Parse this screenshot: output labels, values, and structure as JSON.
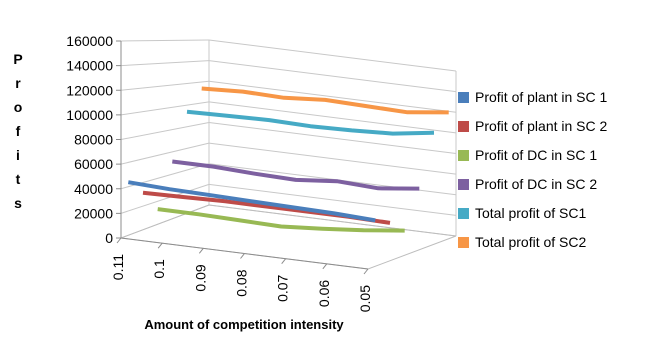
{
  "chart_data": {
    "type": "line",
    "subtype": "3d-line",
    "title": "",
    "ylabel_chars": [
      "P",
      "r",
      "o",
      "f",
      "i",
      "t",
      "s"
    ],
    "xlabel": "Amount of competition intensity",
    "categories": [
      "0.11",
      "0.1",
      "0.09",
      "0.08",
      "0.07",
      "0.06",
      "0.05"
    ],
    "ylim": [
      0,
      160000
    ],
    "yticks": [
      "0",
      "20000",
      "40000",
      "60000",
      "80000",
      "100000",
      "120000",
      "140000",
      "160000"
    ],
    "ytick_values": [
      0,
      20000,
      40000,
      60000,
      80000,
      100000,
      120000,
      140000,
      160000
    ],
    "grid": true,
    "legend_position": "right",
    "series": [
      {
        "name": "Profit of plant in SC 1",
        "color": "#4a7ebb",
        "values": [
          59000,
          57000,
          56000,
          55000,
          54000,
          53000,
          51000
        ]
      },
      {
        "name": "Profit of plant in SC 2",
        "color": "#be4b48",
        "values": [
          40000,
          41000,
          42000,
          42000,
          42000,
          42000,
          41000
        ]
      },
      {
        "name": "Profit of DC in SC 1",
        "color": "#98b954",
        "values": [
          16000,
          16000,
          15000,
          14000,
          17000,
          21000,
          26000
        ]
      },
      {
        "name": "Profit of DC in SC 2",
        "color": "#7d60a0",
        "values": [
          59000,
          59000,
          57000,
          56000,
          60000,
          58000,
          63000
        ]
      },
      {
        "name": "Total profit of SC1",
        "color": "#46aac5",
        "values": [
          102000,
          103000,
          104000,
          103000,
          104000,
          106000,
          112000
        ]
      },
      {
        "name": "Total profit of SC2",
        "color": "#f79646",
        "values": [
          117000,
          119000,
          118000,
          121000,
          120000,
          119000,
          124000
        ]
      }
    ]
  }
}
